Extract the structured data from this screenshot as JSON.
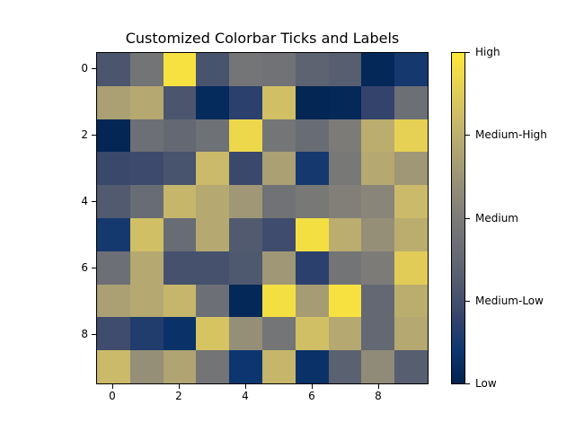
{
  "chart_data": {
    "type": "heatmap",
    "title": "Customized Colorbar Ticks and Labels",
    "colormap": "cividis",
    "xlabel": "",
    "ylabel": "",
    "x_ticks": [
      0,
      2,
      4,
      6,
      8
    ],
    "y_ticks": [
      0,
      2,
      4,
      6,
      8
    ],
    "x_range": [
      -0.5,
      9.5
    ],
    "y_range": [
      9.5,
      -0.5
    ],
    "grid": false,
    "colorbar": {
      "position": "right",
      "range": [
        0,
        1
      ],
      "ticks": [
        0,
        0.25,
        0.5,
        0.75,
        1
      ],
      "tick_labels": [
        "Low",
        "Medium-Low",
        "Medium",
        "Medium-High",
        "High"
      ]
    },
    "values": [
      [
        0.28,
        0.45,
        0.97,
        0.27,
        0.46,
        0.44,
        0.35,
        0.32,
        0.03,
        0.12
      ],
      [
        0.68,
        0.72,
        0.28,
        0.04,
        0.18,
        0.82,
        0.02,
        0.03,
        0.2,
        0.42
      ],
      [
        0.02,
        0.42,
        0.38,
        0.43,
        0.93,
        0.46,
        0.4,
        0.5,
        0.74,
        0.9
      ],
      [
        0.22,
        0.23,
        0.27,
        0.8,
        0.22,
        0.68,
        0.12,
        0.48,
        0.72,
        0.64
      ],
      [
        0.3,
        0.4,
        0.78,
        0.72,
        0.64,
        0.44,
        0.48,
        0.52,
        0.55,
        0.8
      ],
      [
        0.12,
        0.82,
        0.4,
        0.72,
        0.3,
        0.24,
        0.96,
        0.74,
        0.6,
        0.74
      ],
      [
        0.42,
        0.72,
        0.26,
        0.26,
        0.29,
        0.64,
        0.18,
        0.45,
        0.5,
        0.88
      ],
      [
        0.68,
        0.72,
        0.78,
        0.42,
        0.03,
        0.96,
        0.66,
        0.97,
        0.38,
        0.74
      ],
      [
        0.24,
        0.15,
        0.08,
        0.84,
        0.6,
        0.46,
        0.82,
        0.72,
        0.38,
        0.72
      ],
      [
        0.8,
        0.6,
        0.7,
        0.45,
        0.1,
        0.78,
        0.08,
        0.34,
        0.58,
        0.32
      ]
    ]
  },
  "labels": {
    "title": "Customized Colorbar Ticks and Labels",
    "x_ticks": [
      "0",
      "2",
      "4",
      "6",
      "8"
    ],
    "y_ticks": [
      "0",
      "2",
      "4",
      "6",
      "8"
    ],
    "colorbar_ticks": [
      "High",
      "Medium-High",
      "Medium",
      "Medium-Low",
      "Low"
    ]
  }
}
